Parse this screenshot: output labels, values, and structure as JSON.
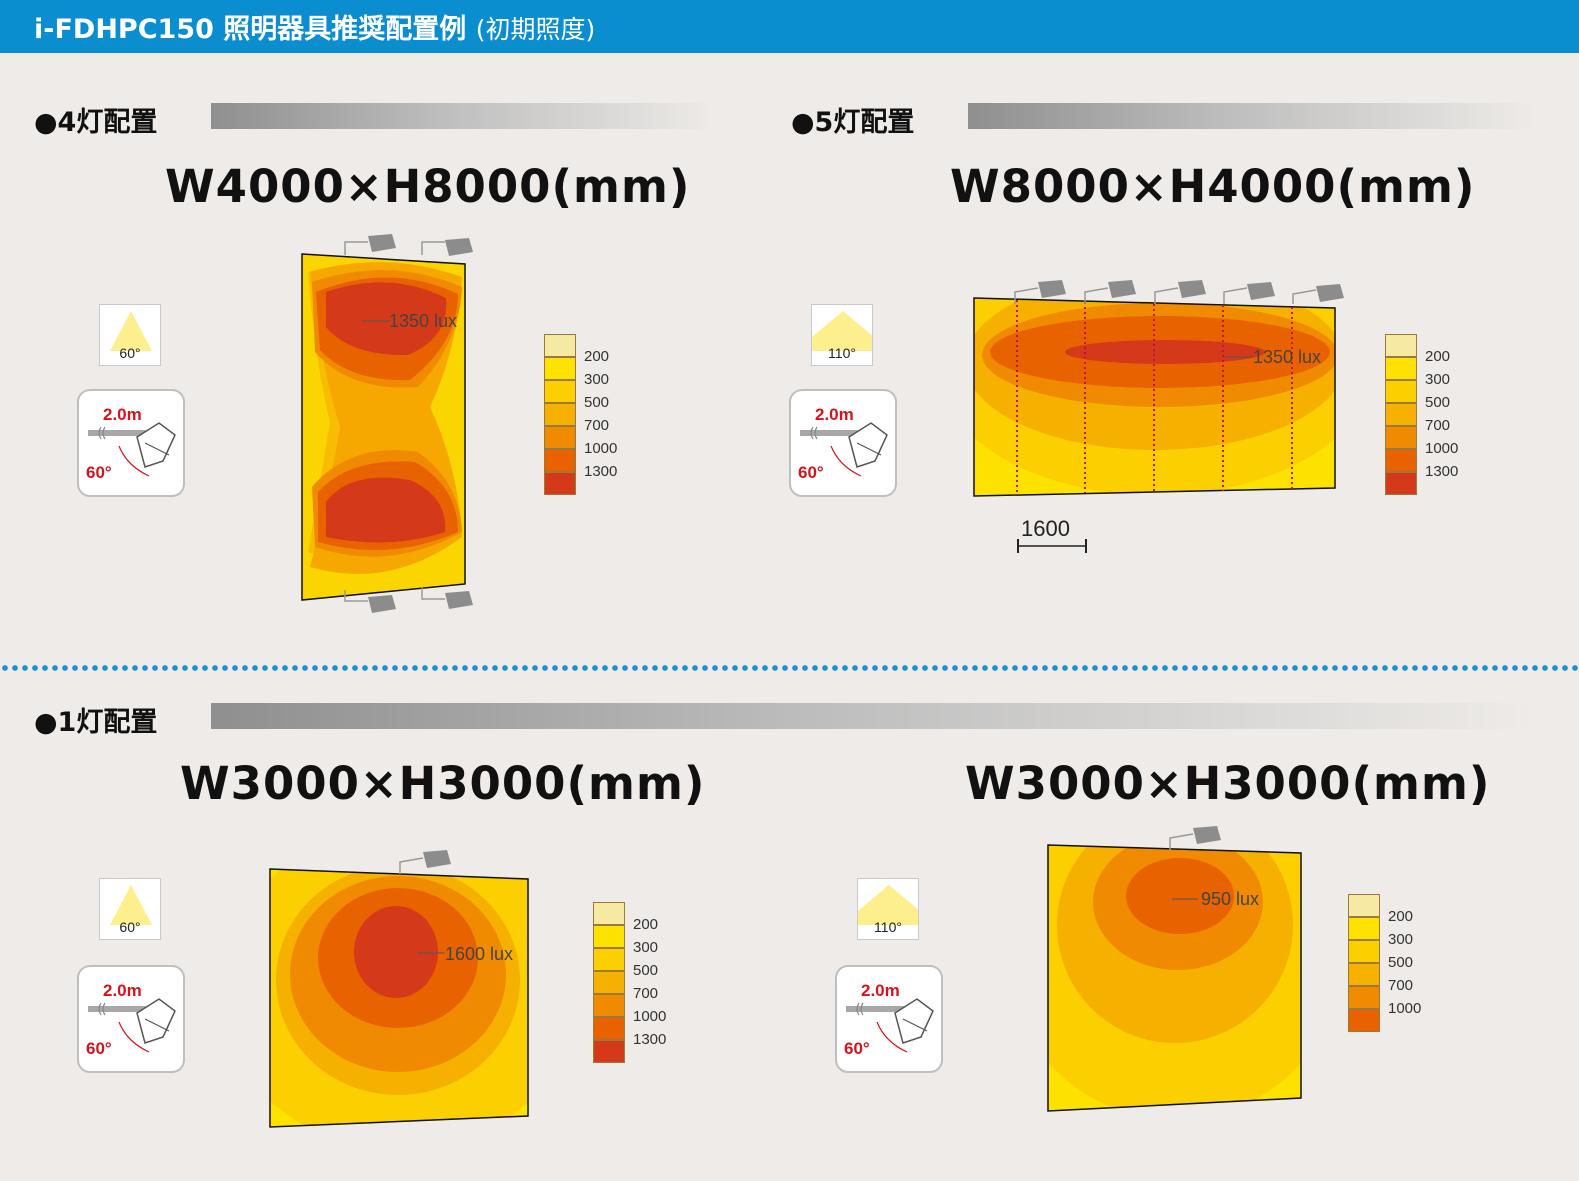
{
  "header": {
    "title": "i-FDHPC150 照明器具推奨配置例",
    "subtitle": "(初期照度)"
  },
  "sections": {
    "four": {
      "label": "●4灯配置",
      "dimension": "W4000×H8000(mm)",
      "beam_angle": "60°",
      "mount_height": "2.0m",
      "tilt_angle": "60°",
      "peak_lux": "1350 lux",
      "lamp_count": 4
    },
    "five": {
      "label": "●5灯配置",
      "dimension": "W8000×H4000(mm)",
      "beam_angle": "110°",
      "mount_height": "2.0m",
      "tilt_angle": "60°",
      "peak_lux": "1350 lux",
      "spacing": "1600",
      "lamp_count": 5
    },
    "one": {
      "label": "●1灯配置"
    },
    "one_a": {
      "dimension": "W3000×H3000(mm)",
      "beam_angle": "60°",
      "mount_height": "2.0m",
      "tilt_angle": "60°",
      "peak_lux": "1600 lux",
      "lamp_count": 1
    },
    "one_b": {
      "dimension": "W3000×H3000(mm)",
      "beam_angle": "110°",
      "mount_height": "2.0m",
      "tilt_angle": "60°",
      "peak_lux": "950 lux",
      "lamp_count": 1
    }
  },
  "legend_full": [
    {
      "label": "",
      "color": "#f6e9a4"
    },
    {
      "label": "200",
      "color": "#fde200"
    },
    {
      "label": "300",
      "color": "#fbcf00"
    },
    {
      "label": "500",
      "color": "#f6b000"
    },
    {
      "label": "700",
      "color": "#f08a00"
    },
    {
      "label": "1000",
      "color": "#e86200"
    },
    {
      "label": "1300",
      "color": "#d43a1a"
    }
  ],
  "legend_short": [
    {
      "label": "",
      "color": "#f6e9a4"
    },
    {
      "label": "200",
      "color": "#fde200"
    },
    {
      "label": "300",
      "color": "#fbcf00"
    },
    {
      "label": "500",
      "color": "#f6b000"
    },
    {
      "label": "700",
      "color": "#f08a00"
    },
    {
      "label": "1000",
      "color": "#e86200"
    }
  ],
  "colors": {
    "header_bg": "#0b8ed0",
    "accent_red": "#d4141c",
    "dot_blue": "#1a8fd4"
  }
}
